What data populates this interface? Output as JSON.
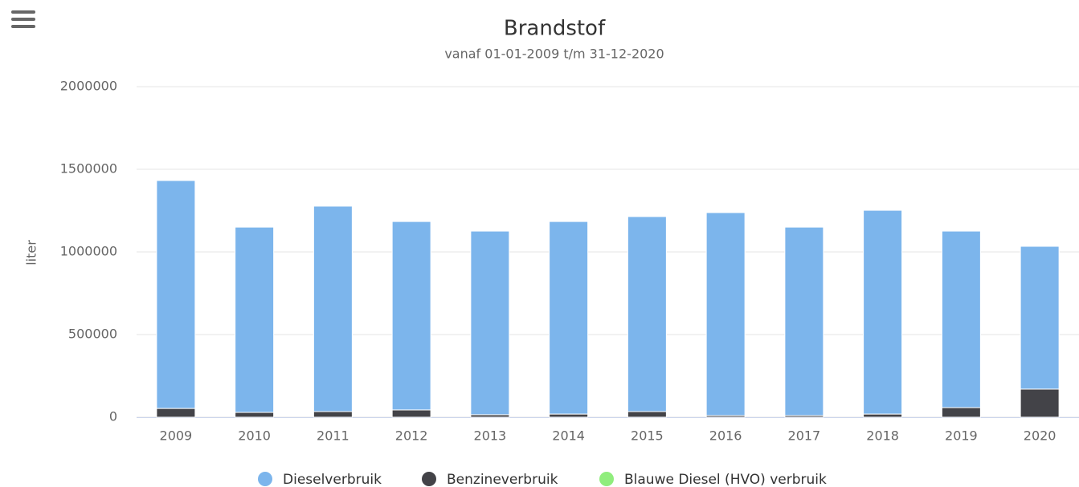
{
  "chart_data": {
    "type": "stacked_bar",
    "title": "Brandstof",
    "subtitle": "vanaf 01-01-2009 t/m 31-12-2020",
    "y_label": "liter",
    "categories": [
      "2009",
      "2010",
      "2011",
      "2012",
      "2013",
      "2014",
      "2015",
      "2016",
      "2017",
      "2018",
      "2019",
      "2020"
    ],
    "series": [
      {
        "name": "Dieselverbruik",
        "color": "#7cb5ec",
        "values": [
          1379000,
          1121000,
          1243000,
          1140000,
          1111000,
          1165000,
          1180000,
          1228000,
          1140000,
          1233000,
          1068000,
          864000
        ]
      },
      {
        "name": "Benzineverbruik",
        "color": "#434348",
        "values": [
          53000,
          29000,
          34000,
          44000,
          15000,
          19000,
          34000,
          10000,
          10000,
          19000,
          58000,
          170000
        ]
      },
      {
        "name": "Blauwe Diesel (HVO) verbruik",
        "color": "#90ed7d",
        "values": [
          0,
          0,
          0,
          0,
          0,
          0,
          0,
          0,
          0,
          0,
          0,
          0
        ]
      }
    ],
    "ylim": [
      0,
      2000000
    ],
    "yticks": [
      0,
      500000,
      1000000,
      1500000,
      2000000
    ],
    "grid": true
  }
}
